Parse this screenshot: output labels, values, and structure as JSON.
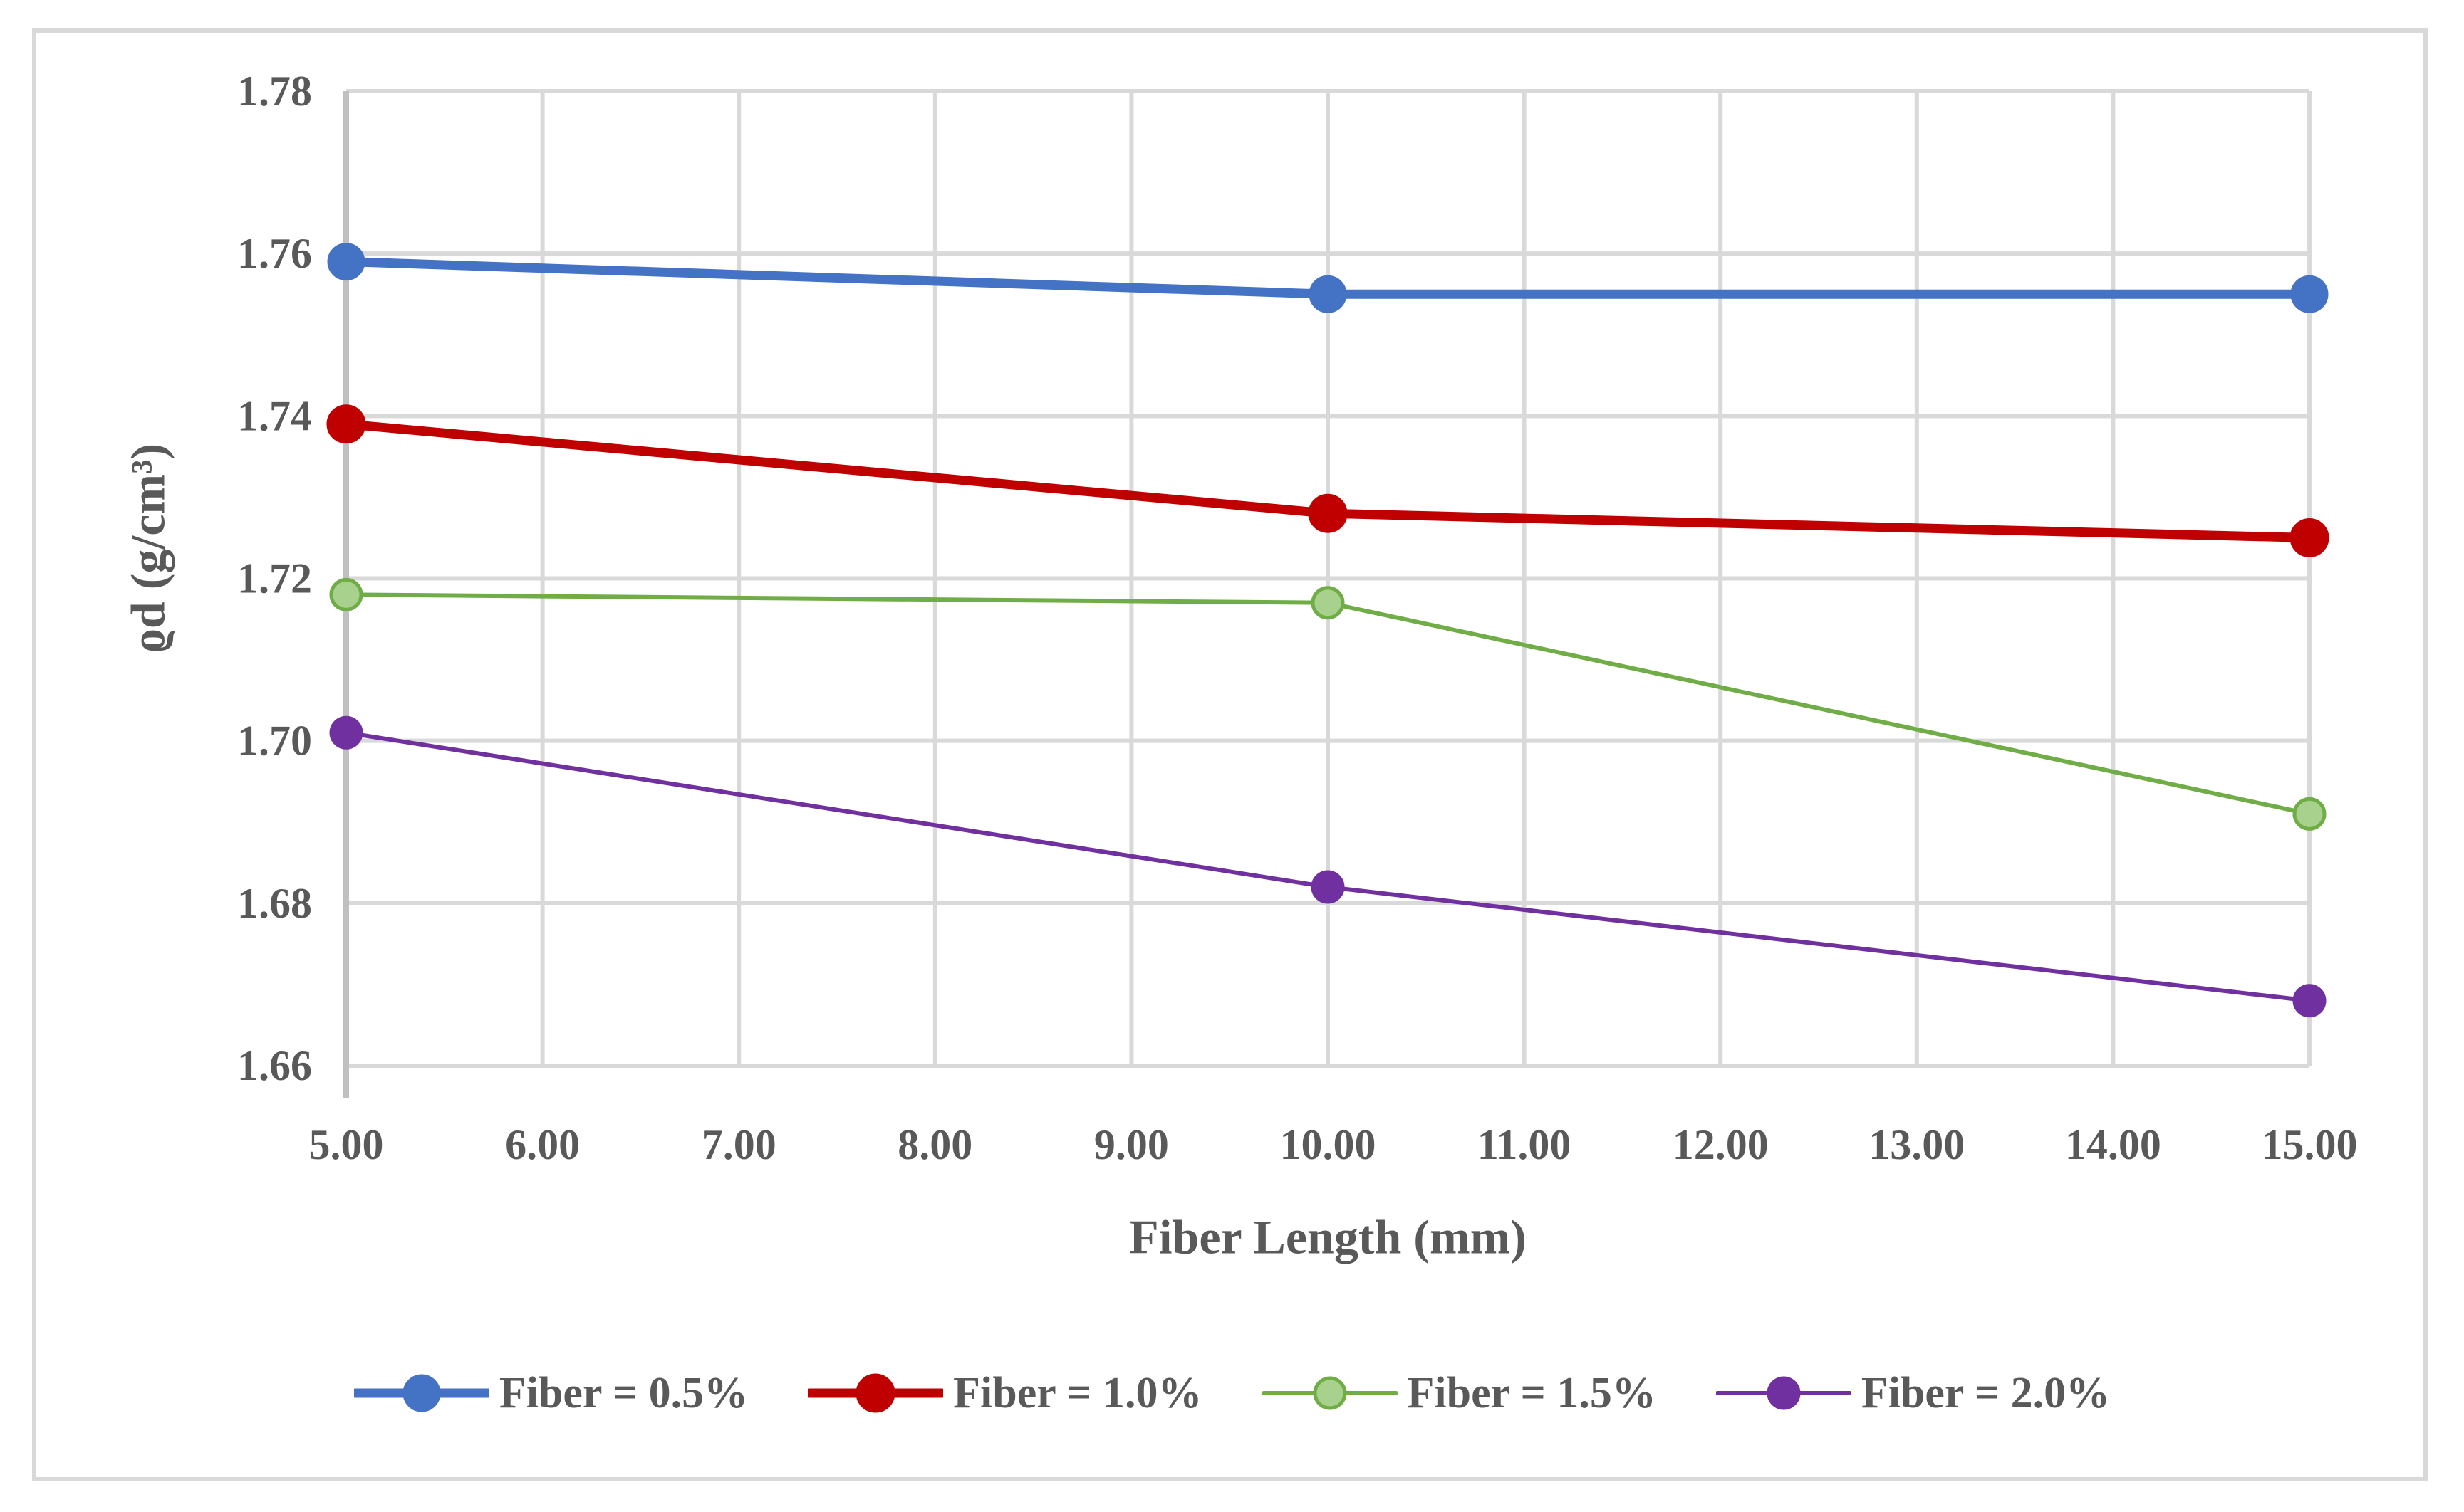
{
  "chart_data": {
    "type": "line",
    "title": "",
    "xlabel": "Fiber Length (mm)",
    "ylabel": "ϱd (g/cm³)",
    "x": [
      5,
      10,
      15
    ],
    "xlim": [
      5,
      15
    ],
    "ylim": [
      1.66,
      1.78
    ],
    "grid": true,
    "legend_position": "bottom",
    "x_ticks": [
      {
        "v": 5,
        "label": "5.00"
      },
      {
        "v": 6,
        "label": "6.00"
      },
      {
        "v": 7,
        "label": "7.00"
      },
      {
        "v": 8,
        "label": "8.00"
      },
      {
        "v": 9,
        "label": "9.00"
      },
      {
        "v": 10,
        "label": "10.00"
      },
      {
        "v": 11,
        "label": "11.00"
      },
      {
        "v": 12,
        "label": "12.00"
      },
      {
        "v": 13,
        "label": "13.00"
      },
      {
        "v": 14,
        "label": "14.00"
      },
      {
        "v": 15,
        "label": "15.00"
      }
    ],
    "y_ticks": [
      {
        "v": 1.66,
        "label": "1.66"
      },
      {
        "v": 1.68,
        "label": "1.68"
      },
      {
        "v": 1.7,
        "label": "1.70"
      },
      {
        "v": 1.72,
        "label": "1.72"
      },
      {
        "v": 1.74,
        "label": "1.74"
      },
      {
        "v": 1.76,
        "label": "1.76"
      },
      {
        "v": 1.78,
        "label": "1.78"
      }
    ],
    "series": [
      {
        "name": "Fiber = 0.5%",
        "values": [
          1.759,
          1.755,
          1.755
        ],
        "color": "#4472C4",
        "marker_fill": "#4472C4",
        "marker_stroke": "#4472C4",
        "line_width": 13,
        "marker_radius": 24
      },
      {
        "name": "Fiber = 1.0%",
        "values": [
          1.739,
          1.728,
          1.725
        ],
        "color": "#C00000",
        "marker_fill": "#C00000",
        "marker_stroke": "#C00000",
        "line_width": 13,
        "marker_radius": 25
      },
      {
        "name": "Fiber = 1.5%",
        "values": [
          1.718,
          1.717,
          1.691
        ],
        "color": "#70AD47",
        "marker_fill": "#A9D18E",
        "marker_stroke": "#70AD47",
        "line_width": 6,
        "marker_radius": 21
      },
      {
        "name": "Fiber = 2.0%",
        "values": [
          1.701,
          1.682,
          1.668
        ],
        "color": "#7030A0",
        "marker_fill": "#7030A0",
        "marker_stroke": "#7030A0",
        "line_width": 6,
        "marker_radius": 21
      }
    ],
    "colors": {
      "grid": "#D9D9D9",
      "axis": "#C0C0C0",
      "text": "#595959",
      "frame": "#D9D9D9",
      "background": "#FFFFFF"
    }
  }
}
